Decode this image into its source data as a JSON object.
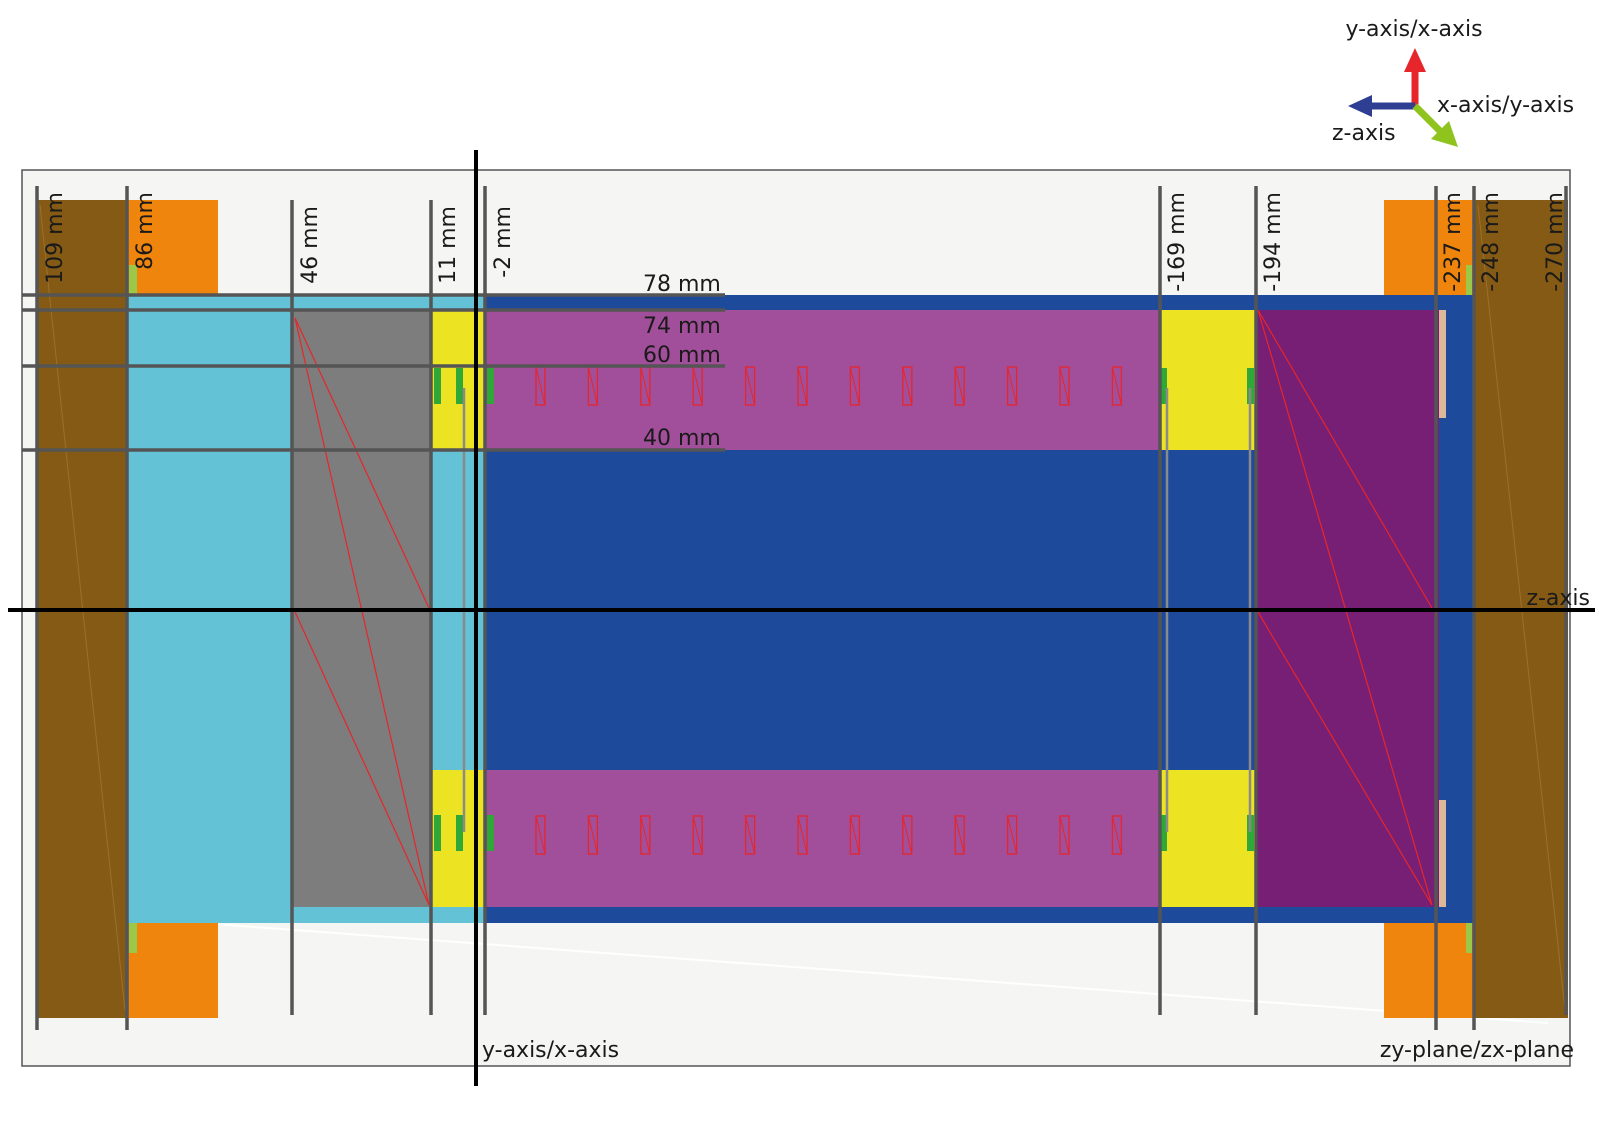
{
  "colors": {
    "frame_bg": "#f5f5f3",
    "brown": "#855a14",
    "orange": "#f0850e",
    "cyan": "#63c2d6",
    "gray": "#7d7d7d",
    "blue": "#1e4a9c",
    "magenta": "#a24f9b",
    "dark_purple": "#771f74",
    "yellow": "#ece322",
    "green": "#2fa838",
    "light_green": "#9cc848",
    "tan": "#ddb898",
    "red": "#e6262a",
    "guide": "#555555",
    "axis": "#000000"
  },
  "z_positions": [
    {
      "label": "109 mm"
    },
    {
      "label": "86 mm"
    },
    {
      "label": "46 mm"
    },
    {
      "label": "11 mm"
    },
    {
      "label": "-2 mm"
    },
    {
      "label": "-169 mm"
    },
    {
      "label": "-194 mm"
    },
    {
      "label": "-237 mm"
    },
    {
      "label": "-248 mm"
    },
    {
      "label": "-270 mm"
    }
  ],
  "radii": [
    {
      "label": "78 mm"
    },
    {
      "label": "74 mm"
    },
    {
      "label": "60 mm"
    },
    {
      "label": "40 mm"
    }
  ],
  "axes": {
    "z_axis_label": "z-axis",
    "vertical_axis_label": "y-axis/x-axis",
    "plane_label": "zy-plane/zx-plane"
  },
  "legend": {
    "up_label": "y-axis/x-axis",
    "left_label": "z-axis",
    "diag_label": "x-axis/y-axis",
    "up_icon": "red-up-arrow",
    "left_icon": "blue-left-arrow",
    "diag_icon": "green-diagonal-arrow"
  },
  "coil_count_per_row": 12
}
